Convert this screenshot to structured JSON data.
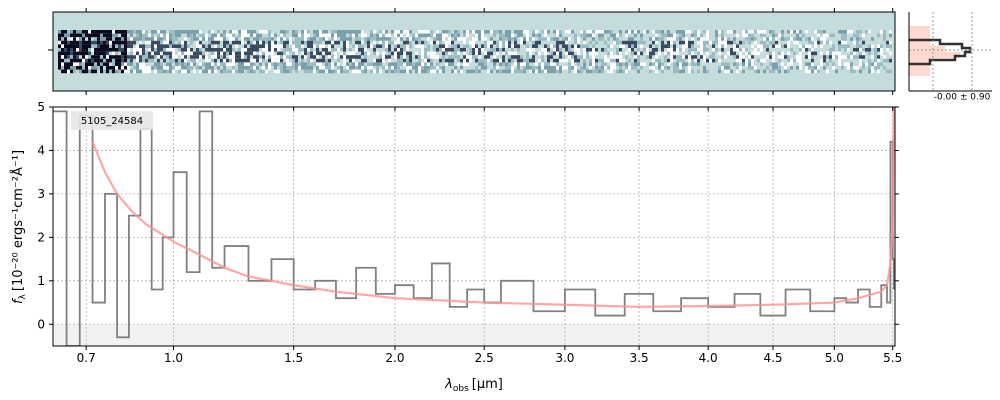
{
  "chart_data": {
    "type": "line",
    "object_label": "5105_24584",
    "xlabel": "λ",
    "xlabel_sub": "obs",
    "xlabel_unit": "[μm]",
    "ylabel_main": "f",
    "ylabel_sub": "λ",
    "ylabel_unit": "[10⁻²⁰ ergs⁻¹cm⁻²Å⁻¹]",
    "x_axis": {
      "scale": "sqrt",
      "range": [
        0.6,
        5.52
      ],
      "ticks": [
        {
          "v": 0.7,
          "label": "0.7"
        },
        {
          "v": 1.0,
          "label": "1.0"
        },
        {
          "v": 1.5,
          "label": "1.5"
        },
        {
          "v": 2.0,
          "label": "2.0"
        },
        {
          "v": 2.5,
          "label": "2.5"
        },
        {
          "v": 3.0,
          "label": "3.0"
        },
        {
          "v": 3.5,
          "label": "3.5"
        },
        {
          "v": 4.0,
          "label": "4.0"
        },
        {
          "v": 4.5,
          "label": "4.5"
        },
        {
          "v": 5.0,
          "label": "5.0"
        },
        {
          "v": 5.5,
          "label": "5.5"
        }
      ]
    },
    "y_axis": {
      "range": [
        -0.5,
        5
      ],
      "ticks": [
        {
          "v": 0,
          "label": "0"
        },
        {
          "v": 1,
          "label": "1"
        },
        {
          "v": 2,
          "label": "2"
        },
        {
          "v": 3,
          "label": "3"
        },
        {
          "v": 4,
          "label": "4"
        },
        {
          "v": 5,
          "label": "5"
        }
      ]
    },
    "grid": true,
    "series": [
      {
        "color": "#808080",
        "x": [
          0.6,
          0.64,
          0.68,
          0.72,
          0.76,
          0.8,
          0.84,
          0.88,
          0.92,
          0.96,
          1.0,
          1.05,
          1.1,
          1.15,
          1.2,
          1.3,
          1.4,
          1.5,
          1.6,
          1.7,
          1.8,
          1.9,
          2.0,
          2.1,
          2.2,
          2.3,
          2.4,
          2.5,
          2.6,
          2.8,
          3.0,
          3.2,
          3.4,
          3.6,
          3.8,
          4.0,
          4.2,
          4.4,
          4.6,
          4.8,
          5.0,
          5.1,
          5.2,
          5.3,
          5.4,
          5.45,
          5.48,
          5.5,
          5.51
        ],
        "y": [
          4.9,
          -0.5,
          4.8,
          0.5,
          3.0,
          -0.3,
          2.5,
          4.5,
          0.8,
          2.0,
          3.5,
          1.2,
          4.9,
          1.3,
          1.8,
          1.0,
          1.5,
          0.8,
          1.0,
          0.6,
          1.3,
          0.7,
          0.9,
          0.6,
          1.4,
          0.4,
          0.8,
          0.5,
          1.0,
          0.3,
          0.8,
          0.2,
          0.7,
          0.3,
          0.6,
          0.4,
          0.7,
          0.2,
          0.8,
          0.3,
          0.6,
          0.5,
          0.8,
          0.4,
          0.9,
          0.5,
          4.2,
          1.5,
          0.8
        ]
      },
      {
        "color": "#ff9090",
        "x": [
          0.72,
          0.76,
          0.8,
          0.85,
          0.9,
          0.95,
          1.0,
          1.1,
          1.2,
          1.3,
          1.5,
          1.7,
          2.0,
          2.5,
          3.0,
          3.5,
          4.0,
          4.5,
          5.0,
          5.2,
          5.4,
          5.45,
          5.48,
          5.5,
          5.51
        ],
        "y": [
          4.2,
          3.5,
          3.0,
          2.6,
          2.3,
          2.1,
          1.9,
          1.6,
          1.3,
          1.1,
          0.9,
          0.75,
          0.6,
          0.5,
          0.45,
          0.4,
          0.42,
          0.45,
          0.5,
          0.6,
          0.75,
          0.9,
          1.4,
          2.4,
          5.0
        ]
      }
    ],
    "side_histogram": {
      "label": "-0.00 ± 0.90"
    },
    "colors": {
      "spectrum2d_bg": "#c4dcdc",
      "spectrum2d_dark": "#0a0a1e",
      "hist_line": "#303030",
      "hist_fill": "#ffcfc4"
    }
  }
}
